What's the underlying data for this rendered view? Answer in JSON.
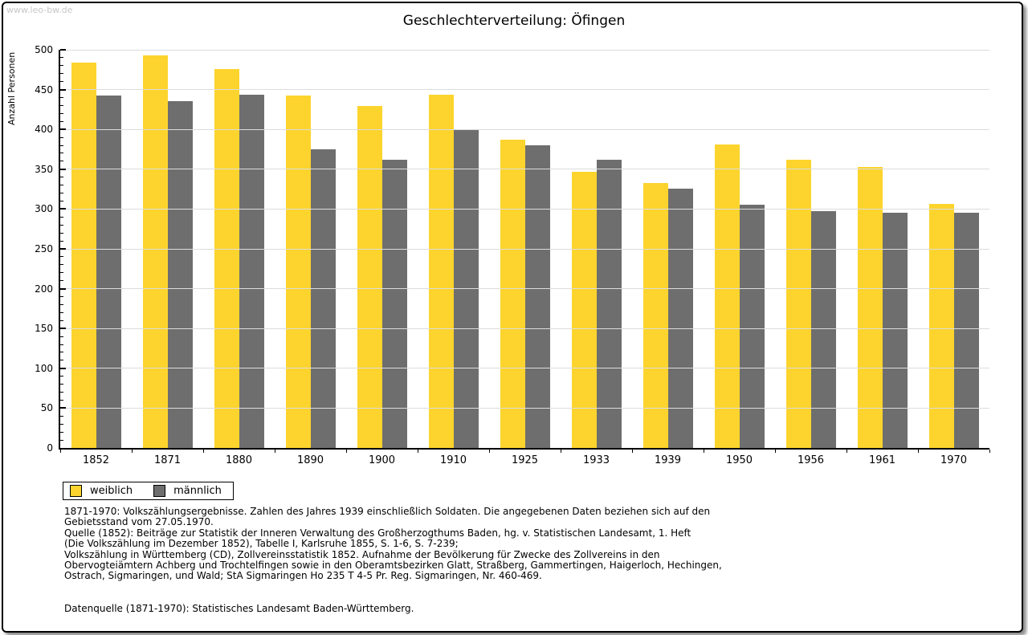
{
  "watermark": "www.leo-bw.de",
  "title": "Geschlechterverteilung: Öfingen",
  "chart_data": {
    "type": "bar",
    "title": "Geschlechterverteilung: Öfingen",
    "xlabel": "",
    "ylabel": "Anzahl Personen",
    "ylim": [
      0,
      500
    ],
    "ytick_step": 50,
    "yminor_step": 10,
    "grid": true,
    "legend_position": "bottom-left",
    "categories": [
      "1852",
      "1871",
      "1880",
      "1890",
      "1900",
      "1910",
      "1925",
      "1933",
      "1939",
      "1950",
      "1956",
      "1961",
      "1970"
    ],
    "series": [
      {
        "name": "weiblich",
        "color": "#FCD42D",
        "values": [
          484,
          493,
          476,
          443,
          429,
          444,
          387,
          347,
          333,
          381,
          362,
          353,
          306
        ]
      },
      {
        "name": "männlich",
        "color": "#6E6E6E",
        "values": [
          443,
          435,
          444,
          375,
          362,
          399,
          380,
          362,
          326,
          305,
          297,
          295,
          295
        ]
      }
    ]
  },
  "legend": {
    "items": [
      {
        "label": "weiblich",
        "color": "#FCD42D"
      },
      {
        "label": "männlich",
        "color": "#6E6E6E"
      }
    ]
  },
  "footnotes": [
    "1871-1970: Volkszählungsergebnisse. Zahlen des Jahres 1939 einschließlich Soldaten. Die angegebenen Daten beziehen sich auf den",
    "Gebietsstand vom 27.05.1970.",
    "Quelle (1852): Beiträge zur Statistik der Inneren Verwaltung des Großherzogthums Baden, hg. v. Statistischen Landesamt, 1. Heft",
    "(Die Volkszählung im Dezember 1852), Tabelle I, Karlsruhe 1855, S. 1-6, S. 7-239;",
    "Volkszählung in Württemberg (CD), Zollvereinsstatistik 1852. Aufnahme der Bevölkerung für Zwecke des Zollvereins in den",
    "Obervogteiämtern Achberg und Trochtelfingen sowie in den Oberamtsbezirken Glatt, Straßberg, Gammertingen, Haigerloch, Hechingen,",
    "Ostrach, Sigmaringen, und Wald; StA Sigmaringen Ho 235 T 4-5 Pr. Reg. Sigmaringen, Nr. 460-469."
  ],
  "datasource": "Datenquelle (1871-1970): Statistisches Landesamt Baden-Württemberg."
}
